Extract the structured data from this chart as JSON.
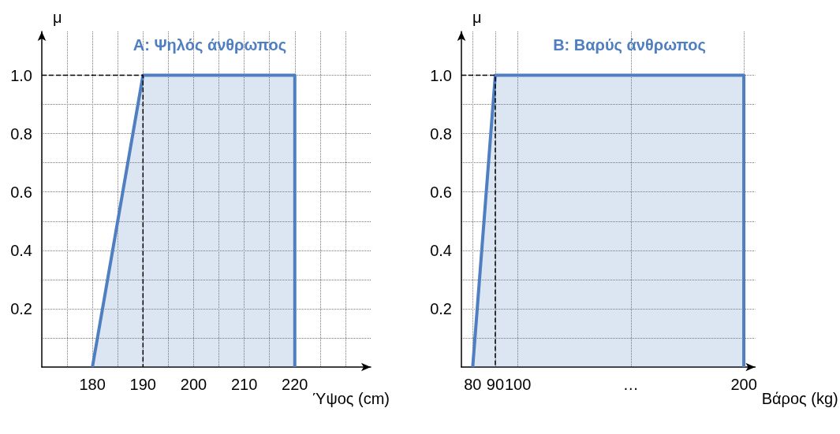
{
  "chart_data": [
    {
      "type": "area",
      "title": "A: Ψηλός άνθρωπος",
      "xlabel": "Ύψος (cm)",
      "ylabel": "μ",
      "series": [
        {
          "color": "#4f7fc0",
          "x": [
            180,
            190,
            220,
            220
          ],
          "values": [
            0,
            1,
            1,
            0
          ]
        },
        {
          "type": "line",
          "color": "#000000",
          "line_style": "dashed",
          "x": [
            170,
            190,
            190
          ],
          "values": [
            1,
            1,
            0
          ]
        }
      ],
      "xlim": [
        170,
        235
      ],
      "xticks": [
        {
          "value": 175,
          "label": null
        },
        180,
        {
          "value": 185,
          "label": null
        },
        190,
        {
          "value": 195,
          "label": null
        },
        200,
        {
          "value": 205,
          "label": null
        },
        210,
        {
          "value": 215,
          "label": null
        },
        220,
        {
          "value": 225,
          "label": null
        },
        {
          "value": 230,
          "label": null
        }
      ],
      "ylim": [
        0,
        1.15
      ],
      "yticks": [
        {
          "value": 0.1,
          "label": null
        },
        0.2,
        {
          "value": 0.3,
          "label": null
        },
        0.4,
        {
          "value": 0.5,
          "label": null
        },
        0.6,
        {
          "value": 0.7,
          "label": null
        },
        0.8,
        {
          "value": 0.9,
          "label": null
        },
        {
          "value": 1.0,
          "label": "1.0"
        }
      ],
      "grid": true
    },
    {
      "type": "area",
      "title": "B: Βαρύς άνθρωπος",
      "xlabel": "Βάρος (kg)",
      "ylabel": "μ",
      "series": [
        {
          "color": "#4f7fc0",
          "x": [
            80,
            90,
            200,
            200
          ],
          "values": [
            0,
            1,
            1,
            0
          ]
        },
        {
          "type": "line",
          "color": "#000000",
          "line_style": "dashed",
          "x": [
            75,
            90,
            90
          ],
          "values": [
            1,
            1,
            0
          ]
        }
      ],
      "xlim": [
        75,
        205
      ],
      "xticks": [
        80,
        90,
        100,
        {
          "value": 150,
          "label": "…"
        },
        200
      ],
      "ylim": [
        0,
        1.15
      ],
      "yticks": [
        {
          "value": 0.1,
          "label": null
        },
        0.2,
        {
          "value": 0.3,
          "label": null
        },
        0.4,
        {
          "value": 0.5,
          "label": null
        },
        0.6,
        {
          "value": 0.7,
          "label": null
        },
        0.8,
        {
          "value": 0.9,
          "label": null
        },
        {
          "value": 1.0,
          "label": "1.0"
        }
      ],
      "grid": true
    }
  ]
}
